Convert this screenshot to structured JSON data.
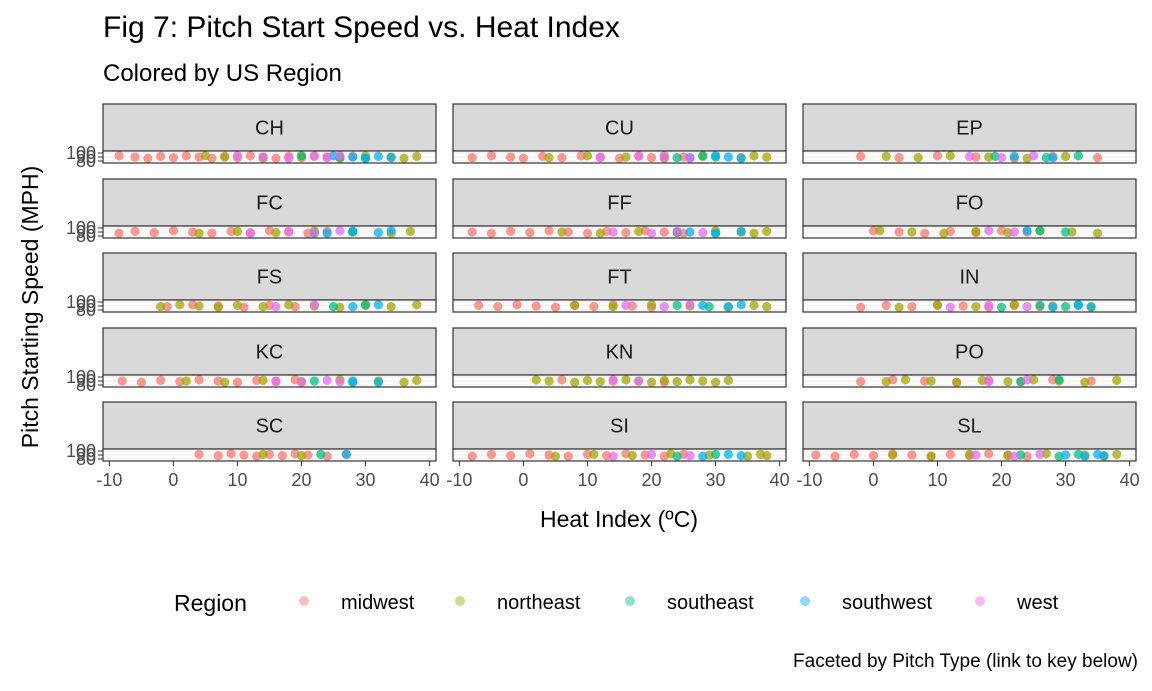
{
  "chart_data": {
    "type": "scatter",
    "title": "Fig 7: Pitch Start Speed vs. Heat Index",
    "subtitle": "Colored by US Region",
    "caption": "Faceted by Pitch Type (link to key below)",
    "xlabel": "Heat Index (ºC)",
    "ylabel": "Pitch Starting Speed (MPH)",
    "xlim": [
      -11,
      41
    ],
    "x_ticks": [
      "-10",
      "0",
      "10",
      "20",
      "30",
      "40"
    ],
    "y_tick_labels": [
      "100",
      "90",
      "80"
    ],
    "facet_layout": {
      "rows": 5,
      "cols": 3
    },
    "facets": [
      "CH",
      "CU",
      "EP",
      "FC",
      "FF",
      "FO",
      "FS",
      "FT",
      "IN",
      "KC",
      "KN",
      "PO",
      "SC",
      "SI",
      "SL"
    ],
    "legend": {
      "title": "Region",
      "position": "bottom",
      "entries": [
        {
          "name": "midwest",
          "color": "#F8766D"
        },
        {
          "name": "northeast",
          "color": "#A3A500"
        },
        {
          "name": "southeast",
          "color": "#00BF7D"
        },
        {
          "name": "southwest",
          "color": "#00B0F6"
        },
        {
          "name": "west",
          "color": "#E76BF3"
        }
      ]
    },
    "series": [
      {
        "name": "midwest",
        "points": {
          "CH": [
            -8.5,
            -6,
            -4,
            -2,
            0,
            2,
            4,
            6,
            8,
            10,
            12,
            14,
            16,
            18,
            20,
            22,
            24,
            26,
            28
          ],
          "CU": [
            -8,
            -5,
            -2,
            0,
            3,
            6,
            9,
            12,
            15,
            18,
            20,
            22,
            25
          ],
          "EP": [
            -2,
            4,
            10,
            16,
            22,
            28,
            35
          ],
          "FC": [
            -8.5,
            -6,
            -3,
            0,
            3,
            6,
            9,
            12,
            15,
            18,
            21,
            24
          ],
          "FF": [
            -8,
            -5,
            -2,
            1,
            4,
            7,
            10,
            13,
            16,
            19,
            22,
            25
          ],
          "FO": [
            0,
            4,
            8,
            12,
            16,
            20,
            24
          ],
          "FS": [
            -1,
            3,
            7,
            11,
            15,
            19
          ],
          "FT": [
            -7,
            -4,
            -1,
            2,
            5,
            8,
            11,
            14,
            17,
            20
          ],
          "IN": [
            -2,
            2,
            6,
            10,
            14,
            18,
            22,
            26
          ],
          "KC": [
            -8,
            -5,
            -2,
            1,
            4,
            7,
            10,
            13,
            16,
            19
          ],
          "KN": [
            6,
            14,
            22
          ],
          "PO": [
            -2,
            3,
            8,
            13,
            18,
            23,
            28,
            34
          ],
          "SC": [
            4,
            7,
            9,
            11,
            13,
            15,
            17,
            19,
            21,
            24,
            27
          ],
          "SI": [
            -8,
            -5,
            -2,
            1,
            4,
            7,
            10,
            13,
            16,
            19,
            22,
            25
          ],
          "SL": [
            -9,
            -6,
            -3,
            0,
            3,
            6,
            9,
            12,
            15,
            18,
            21,
            24
          ]
        }
      },
      {
        "name": "northeast",
        "points": {
          "CH": [
            5,
            8,
            14,
            20,
            26,
            30,
            34,
            36,
            38
          ],
          "CU": [
            4,
            10,
            16,
            22,
            28,
            34,
            36,
            38
          ],
          "EP": [
            2,
            7,
            12,
            18,
            24,
            30
          ],
          "FC": [
            4,
            10,
            16,
            22,
            28,
            34,
            37
          ],
          "FF": [
            6,
            12,
            18,
            24,
            30,
            34,
            36,
            38
          ],
          "FO": [
            1,
            6,
            11,
            16,
            21,
            26,
            31,
            35
          ],
          "FS": [
            -2,
            1,
            4,
            7,
            10,
            14,
            18,
            22,
            26,
            30,
            34,
            38
          ],
          "FT": [
            8,
            14,
            20,
            26,
            32,
            36,
            38
          ],
          "IN": [
            4,
            10,
            16,
            22,
            28,
            34
          ],
          "KC": [
            2,
            8,
            14,
            20,
            26,
            32,
            36,
            38
          ],
          "KN": [
            2,
            4,
            8,
            10,
            12,
            16,
            18,
            20,
            22,
            24,
            26,
            28,
            30,
            32
          ],
          "PO": [
            2,
            5,
            9,
            13,
            17,
            21,
            25,
            29,
            33,
            38
          ],
          "SC": [
            14,
            20
          ],
          "SI": [
            5,
            11,
            17,
            23,
            29,
            35,
            37,
            38
          ],
          "SL": [
            3,
            9,
            15,
            21,
            27,
            33,
            36,
            38
          ]
        }
      },
      {
        "name": "southeast",
        "points": {
          "CH": [
            20,
            26,
            30
          ],
          "CU": [
            24,
            28,
            30
          ],
          "EP": [
            19,
            27,
            32
          ],
          "FC": [
            22,
            28
          ],
          "FF": [
            24,
            30
          ],
          "FO": [
            26,
            30
          ],
          "FS": [
            25,
            30
          ],
          "FT": [
            24,
            29
          ],
          "IN": [
            20,
            26,
            30,
            32
          ],
          "KC": [
            22,
            28
          ],
          "KN": [],
          "PO": [
            23,
            29
          ],
          "SC": [
            23
          ],
          "SI": [
            24,
            30
          ],
          "SL": [
            23,
            29,
            32
          ]
        }
      },
      {
        "name": "southwest",
        "points": {
          "CH": [
            25,
            28,
            30,
            32,
            34
          ],
          "CU": [
            26,
            30,
            32,
            34
          ],
          "EP": [
            22,
            28
          ],
          "FC": [
            24,
            28,
            32,
            34
          ],
          "FF": [
            26,
            30,
            34
          ],
          "FO": [
            24
          ],
          "FS": [
            28,
            32
          ],
          "FT": [
            28,
            32,
            34
          ],
          "IN": [
            28,
            32,
            34
          ],
          "KC": [
            28,
            32
          ],
          "KN": [],
          "PO": [],
          "SC": [
            27
          ],
          "SI": [
            28,
            32,
            34
          ],
          "SL": [
            30,
            33,
            35,
            36
          ]
        }
      },
      {
        "name": "west",
        "points": {
          "CH": [
            10,
            14,
            18,
            22,
            24,
            26
          ],
          "CU": [
            12,
            18,
            22,
            26
          ],
          "EP": [
            15,
            20,
            25
          ],
          "FC": [
            12,
            18,
            22,
            26
          ],
          "FF": [
            14,
            20,
            24,
            28
          ],
          "FO": [
            18,
            22
          ],
          "FS": [
            16,
            22
          ],
          "FT": [
            16,
            22,
            26
          ],
          "IN": [
            12,
            18,
            24
          ],
          "KC": [
            16,
            20,
            24,
            26
          ],
          "KN": [
            14,
            18
          ],
          "PO": [
            18,
            24
          ],
          "SC": [],
          "SI": [
            14,
            20,
            26
          ],
          "SL": [
            16,
            22,
            26
          ]
        }
      }
    ]
  }
}
